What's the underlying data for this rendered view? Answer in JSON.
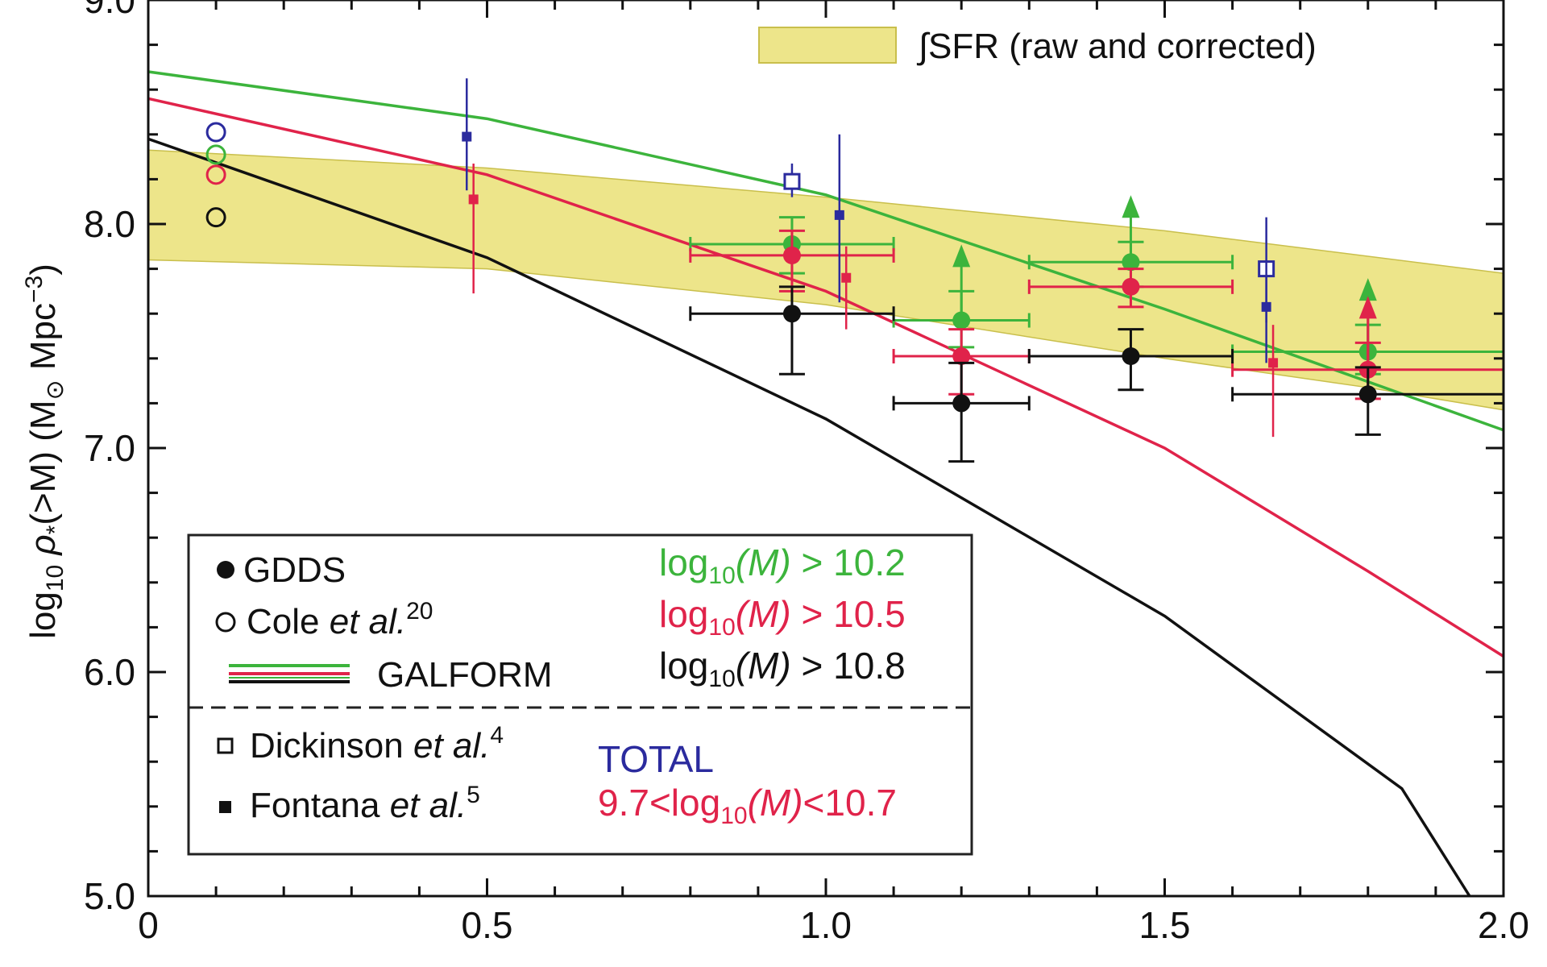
{
  "chart_data": {
    "type": "scatter",
    "title": "",
    "xlabel": "",
    "ylabel_parts": {
      "prefix": "log",
      "prefix_sub": "10",
      "rho": " ρ",
      "rho_sub": "*",
      "arg": "(>M) (M",
      "arg_sub": "⊙",
      "unit": " Mpc",
      "unit_sup": "−3",
      "close": ")"
    },
    "xlim": [
      0,
      2.0
    ],
    "ylim": [
      5.0,
      9.0
    ],
    "x_ticks": [
      "0",
      "0.5",
      "1.0",
      "1.5",
      "2.0"
    ],
    "x_tick_values": [
      0,
      0.5,
      1.0,
      1.5,
      2.0
    ],
    "y_ticks": [
      "5.0",
      "6.0",
      "7.0",
      "8.0",
      "9.0"
    ],
    "y_tick_values": [
      5.0,
      6.0,
      7.0,
      8.0,
      9.0
    ],
    "colors": {
      "green": "#3cb43c",
      "red": "#e0234a",
      "black": "#111111",
      "blue": "#2b2b9e",
      "band": "#ede58a",
      "band_edge": "#c9bf4c"
    },
    "sfr_band": {
      "label": "∫SFR (raw and corrected)",
      "upper": [
        [
          0,
          8.33
        ],
        [
          0.5,
          8.25
        ],
        [
          1.0,
          8.12
        ],
        [
          1.5,
          7.97
        ],
        [
          2.0,
          7.78
        ]
      ],
      "lower": [
        [
          0,
          7.84
        ],
        [
          0.5,
          7.8
        ],
        [
          1.0,
          7.64
        ],
        [
          1.5,
          7.4
        ],
        [
          1.8,
          7.27
        ],
        [
          2.0,
          7.17
        ]
      ]
    },
    "galform": [
      {
        "name": "log10(M) > 10.2",
        "color": "green",
        "points": [
          [
            0,
            8.68
          ],
          [
            0.5,
            8.47
          ],
          [
            1.0,
            8.13
          ],
          [
            1.5,
            7.62
          ],
          [
            2.0,
            7.08
          ]
        ]
      },
      {
        "name": "log10(M) > 10.5",
        "color": "red",
        "points": [
          [
            0,
            8.56
          ],
          [
            0.5,
            8.22
          ],
          [
            1.0,
            7.7
          ],
          [
            1.5,
            7.0
          ],
          [
            1.8,
            6.45
          ],
          [
            2.0,
            6.07
          ]
        ]
      },
      {
        "name": "log10(M) > 10.8",
        "color": "black",
        "points": [
          [
            0,
            8.38
          ],
          [
            0.5,
            7.85
          ],
          [
            1.0,
            7.13
          ],
          [
            1.5,
            6.25
          ],
          [
            1.85,
            5.48
          ],
          [
            1.95,
            5.0
          ]
        ]
      }
    ],
    "gdds": [
      {
        "color": "green",
        "points": [
          {
            "x": 0.95,
            "y": 7.91,
            "xerr": [
              0.8,
              1.1
            ],
            "yerr": [
              7.78,
              8.03
            ],
            "lower_limit": false
          },
          {
            "x": 1.2,
            "y": 7.57,
            "xerr": [
              1.1,
              1.3
            ],
            "yerr": [
              7.45,
              7.7
            ],
            "lower_limit": true
          },
          {
            "x": 1.45,
            "y": 7.83,
            "xerr": [
              1.3,
              1.6
            ],
            "yerr": [
              7.72,
              7.92
            ],
            "lower_limit": true
          },
          {
            "x": 1.8,
            "y": 7.43,
            "xerr": [
              1.6,
              2.0
            ],
            "yerr": [
              7.33,
              7.55
            ],
            "lower_limit": true
          }
        ]
      },
      {
        "color": "red",
        "points": [
          {
            "x": 0.95,
            "y": 7.86,
            "xerr": [
              0.8,
              1.1
            ],
            "yerr": [
              7.7,
              7.97
            ],
            "lower_limit": false
          },
          {
            "x": 1.2,
            "y": 7.41,
            "xerr": [
              1.1,
              1.3
            ],
            "yerr": [
              7.24,
              7.53
            ],
            "lower_limit": false
          },
          {
            "x": 1.45,
            "y": 7.72,
            "xerr": [
              1.3,
              1.6
            ],
            "yerr": [
              7.63,
              7.8
            ],
            "lower_limit": false
          },
          {
            "x": 1.8,
            "y": 7.35,
            "xerr": [
              1.6,
              2.0
            ],
            "yerr": [
              7.22,
              7.47
            ],
            "lower_limit": true
          }
        ]
      },
      {
        "color": "black",
        "points": [
          {
            "x": 0.95,
            "y": 7.6,
            "xerr": [
              0.8,
              1.1
            ],
            "yerr": [
              7.33,
              7.72
            ],
            "lower_limit": false
          },
          {
            "x": 1.2,
            "y": 7.2,
            "xerr": [
              1.1,
              1.3
            ],
            "yerr": [
              6.94,
              7.38
            ],
            "lower_limit": false
          },
          {
            "x": 1.45,
            "y": 7.41,
            "xerr": [
              1.3,
              1.6
            ],
            "yerr": [
              7.26,
              7.53
            ],
            "lower_limit": false
          },
          {
            "x": 1.8,
            "y": 7.24,
            "xerr": [
              1.6,
              2.0
            ],
            "yerr": [
              7.06,
              7.36
            ],
            "lower_limit": false
          }
        ]
      }
    ],
    "cole": [
      {
        "color": "blue",
        "x": 0.1,
        "y": 8.41
      },
      {
        "color": "green",
        "x": 0.1,
        "y": 8.31
      },
      {
        "color": "red",
        "x": 0.1,
        "y": 8.22
      },
      {
        "color": "black",
        "x": 0.1,
        "y": 8.03
      }
    ],
    "dickinson": [
      {
        "color": "blue",
        "x": 0.95,
        "y": 8.19,
        "yerr": [
          8.12,
          8.27
        ]
      },
      {
        "color": "blue",
        "x": 1.65,
        "y": 7.8,
        "yerr": [
          7.56,
          8.03
        ]
      }
    ],
    "fontana": [
      {
        "color": "blue",
        "x": 0.47,
        "y": 8.39,
        "yerr": [
          8.15,
          8.65
        ]
      },
      {
        "color": "red",
        "x": 0.48,
        "y": 8.11,
        "yerr": [
          7.69,
          8.27
        ]
      },
      {
        "color": "blue",
        "x": 1.02,
        "y": 8.04,
        "yerr": [
          7.65,
          8.4
        ]
      },
      {
        "color": "red",
        "x": 1.03,
        "y": 7.76,
        "yerr": [
          7.53,
          7.9
        ]
      },
      {
        "color": "blue",
        "x": 1.65,
        "y": 7.63,
        "yerr": [
          7.38,
          7.83
        ]
      },
      {
        "color": "red",
        "x": 1.66,
        "y": 7.38,
        "yerr": [
          7.05,
          7.55
        ]
      }
    ]
  },
  "legend": {
    "gdds_label": "GDDS",
    "cole_label": "Cole ",
    "cole_etal": "et al.",
    "cole_ref": "20",
    "galform_label": "GALFORM",
    "dickinson_label": "Dickinson ",
    "dickinson_etal": "et al.",
    "dickinson_ref": "4",
    "fontana_label": "Fontana ",
    "fontana_etal": "et al.",
    "fontana_ref": "5",
    "cut1": {
      "prefix": "log",
      "sub": "10",
      "m": "(M)",
      "rest": " > 10.2"
    },
    "cut2": {
      "prefix": "log",
      "sub": "10",
      "m": "(M)",
      "rest": " > 10.5"
    },
    "cut3": {
      "prefix": "log",
      "sub": "10",
      "m": "(M)",
      "rest": " > 10.8"
    },
    "total_label": "TOTAL",
    "range": {
      "pre": "9.7<log",
      "sub": "10",
      "m": "(M)",
      "rest": "<10.7"
    }
  }
}
